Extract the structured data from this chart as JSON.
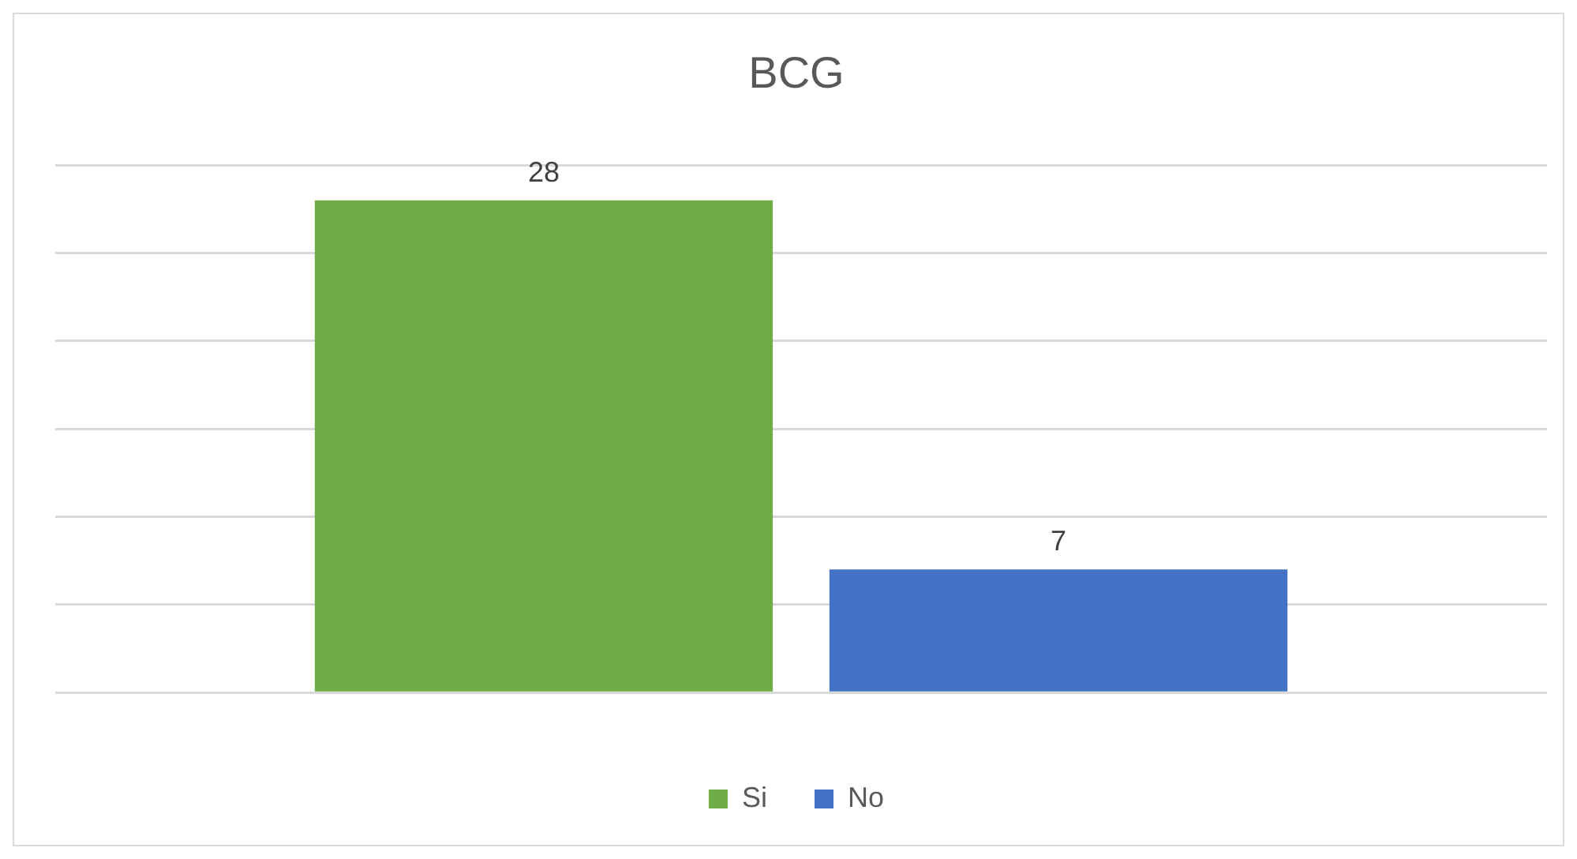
{
  "chart_data": {
    "type": "bar",
    "title": "BCG",
    "categories": [
      null
    ],
    "series": [
      {
        "name": "Si",
        "color": "#70ad47",
        "values": [
          28
        ]
      },
      {
        "name": "No",
        "color": "#4472c4",
        "values": [
          7
        ]
      }
    ],
    "ylim": [
      0,
      30
    ],
    "yticks": [
      {
        "value": 0,
        "label": null
      },
      {
        "value": 5,
        "label": null
      },
      {
        "value": 10,
        "label": null
      },
      {
        "value": 15,
        "label": null
      },
      {
        "value": 20,
        "label": null
      },
      {
        "value": 25,
        "label": null
      },
      {
        "value": 30,
        "label": null
      }
    ],
    "grid": "y",
    "legend": "bottom",
    "data_labels": true
  }
}
